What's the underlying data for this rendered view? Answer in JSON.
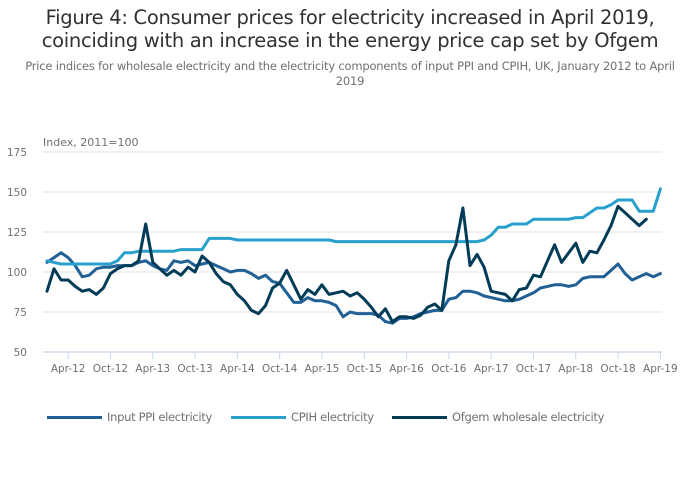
{
  "header": {
    "title": "Figure 4: Consumer prices for electricity increased in April 2019, coinciding with an increase in the energy price cap set by Ofgem",
    "subtitle": "Price indices for wholesale electricity and the electricity components of input PPI and CPIH, UK, January 2012 to April 2019"
  },
  "chart_data": {
    "type": "line",
    "title": "Figure 4: Consumer prices for electricity increased in April 2019, coinciding with an increase in the energy price cap set by Ofgem",
    "subtitle": "Price indices for wholesale electricity and the electricity components of input PPI and CPIH, UK, January 2012 to April 2019",
    "xlabel": "",
    "ylabel": "Index, 2011=100",
    "ylim": [
      50,
      175
    ],
    "yticks": [
      50,
      75,
      100,
      125,
      150,
      175
    ],
    "grid": true,
    "legend_position": "bottom",
    "x_start": "Jan-12",
    "x_end": "Apr-19",
    "x_frequency": "monthly",
    "xtick_labels": [
      "Apr-12",
      "Oct-12",
      "Apr-13",
      "Oct-13",
      "Apr-14",
      "Oct-14",
      "Apr-15",
      "Oct-15",
      "Apr-16",
      "Oct-16",
      "Apr-17",
      "Oct-17",
      "Apr-18",
      "Oct-18",
      "Apr-19"
    ],
    "xtick_month_index": [
      3,
      9,
      15,
      21,
      27,
      33,
      39,
      45,
      51,
      57,
      63,
      69,
      75,
      81,
      87
    ],
    "series": [
      {
        "name": "Input PPI electricity",
        "color": "#206095",
        "values": [
          106,
          109,
          112,
          109,
          104,
          97,
          98,
          102,
          103,
          103,
          104,
          104,
          104,
          106,
          107,
          104,
          102,
          101,
          107,
          106,
          107,
          104,
          105,
          106,
          104,
          102,
          100,
          101,
          101,
          99,
          96,
          98,
          94,
          93,
          87,
          81,
          81,
          84,
          82,
          82,
          81,
          79,
          72,
          75,
          74,
          74,
          74,
          73,
          69,
          68,
          71,
          71,
          72,
          74,
          75,
          76,
          76,
          83,
          84,
          88,
          88,
          87,
          85,
          84,
          83,
          82,
          82,
          83,
          85,
          87,
          90,
          91,
          92,
          92,
          91,
          92,
          96,
          97,
          97,
          97,
          101,
          105,
          99,
          95,
          97,
          99,
          97,
          99
        ]
      },
      {
        "name": "CPIH electricity",
        "color": "#27a0cc",
        "values": [
          107,
          106,
          105,
          105,
          105,
          105,
          105,
          105,
          105,
          105,
          107,
          112,
          112,
          113,
          113,
          113,
          113,
          113,
          113,
          114,
          114,
          114,
          114,
          121,
          121,
          121,
          121,
          120,
          120,
          120,
          120,
          120,
          120,
          120,
          120,
          120,
          120,
          120,
          120,
          120,
          120,
          119,
          119,
          119,
          119,
          119,
          119,
          119,
          119,
          119,
          119,
          119,
          119,
          119,
          119,
          119,
          119,
          119,
          119,
          119,
          119,
          119,
          120,
          123,
          128,
          128,
          130,
          130,
          130,
          133,
          133,
          133,
          133,
          133,
          133,
          134,
          134,
          137,
          140,
          140,
          142,
          145,
          145,
          145,
          138,
          138,
          138,
          152
        ]
      },
      {
        "name": "Ofgem wholesale electricity",
        "color": "#003c57",
        "values": [
          88,
          102,
          95,
          95,
          91,
          88,
          89,
          86,
          90,
          99,
          102,
          104,
          104,
          107,
          130,
          106,
          102,
          98,
          101,
          98,
          103,
          100,
          110,
          106,
          99,
          94,
          92,
          86,
          82,
          76,
          74,
          79,
          90,
          93,
          101,
          92,
          83,
          89,
          86,
          92,
          86,
          87,
          88,
          85,
          87,
          83,
          78,
          72,
          77,
          69,
          72,
          72,
          71,
          73,
          78,
          80,
          76,
          107,
          117,
          140,
          104,
          111,
          103,
          88,
          87,
          86,
          82,
          89,
          90,
          98,
          97,
          107,
          117,
          106,
          112,
          118,
          106,
          113,
          112,
          120,
          129,
          141,
          137,
          133,
          129,
          133
        ]
      }
    ]
  }
}
